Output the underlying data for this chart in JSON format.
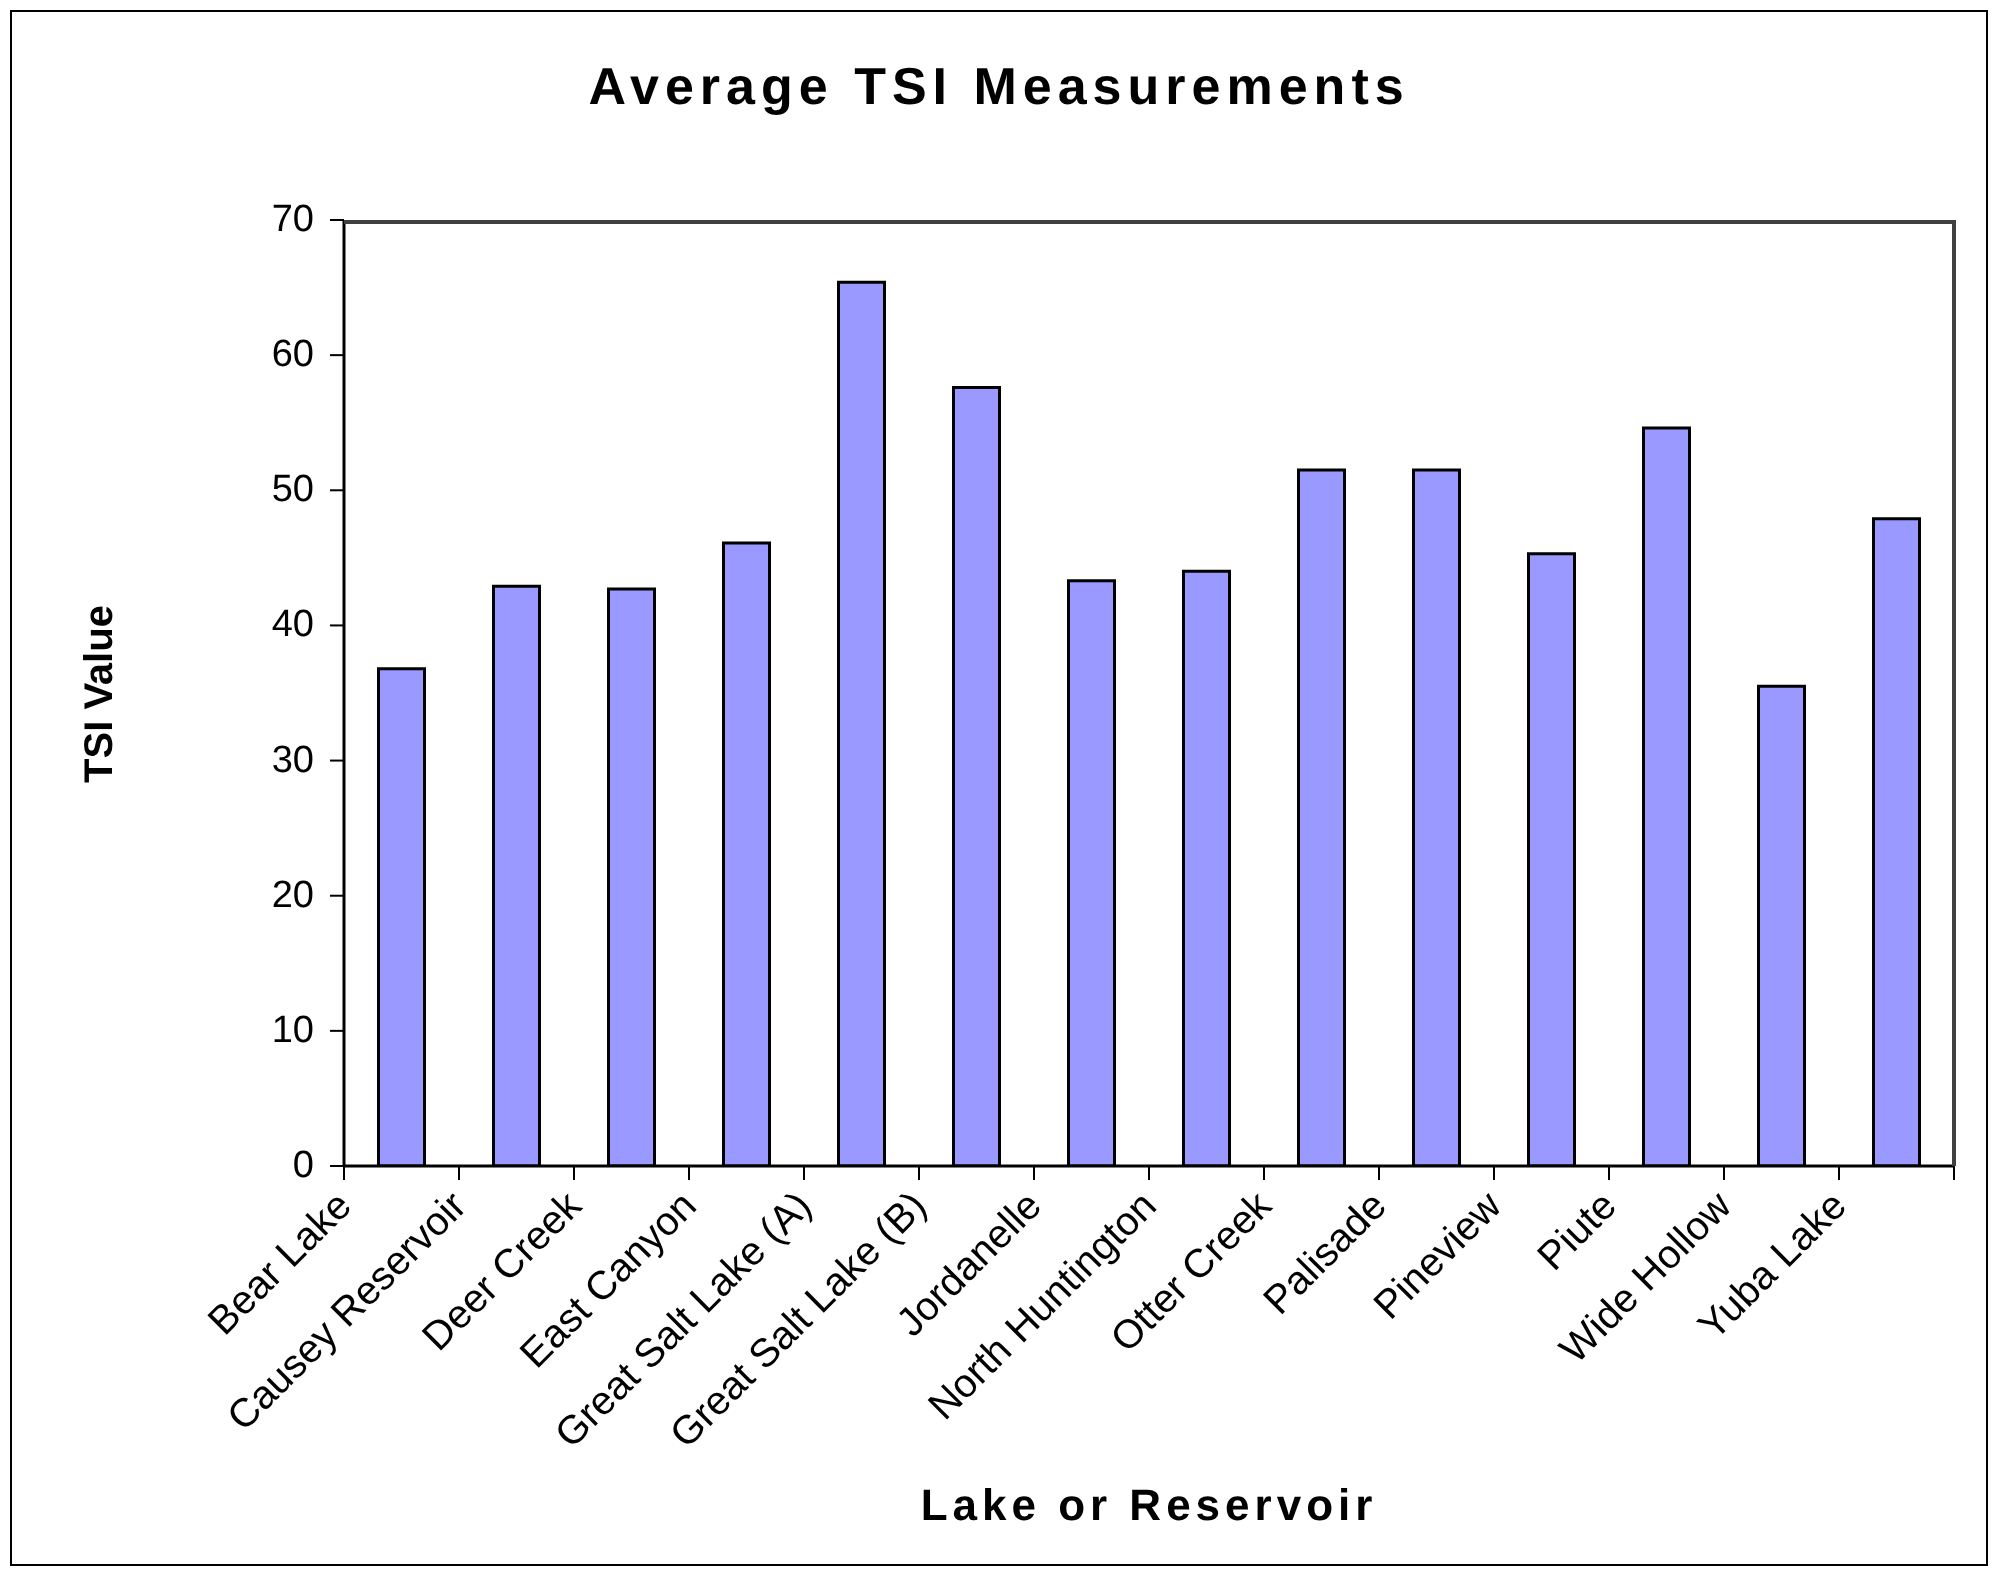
{
  "chart_data": {
    "type": "bar",
    "title": "Average TSI Measurements",
    "xlabel": "Lake or Reservoir",
    "ylabel": "TSI Value",
    "categories": [
      "Bear Lake",
      "Causey Reservoir",
      "Deer Creek",
      "East Canyon",
      "Great Salt Lake (A)",
      "Great Salt Lake (B)",
      "Jordanelle",
      "North Huntington",
      "Otter Creek",
      "Palisade",
      "Pineview",
      "Piute",
      "Wide Hollow",
      "Yuba Lake"
    ],
    "values": [
      36.8,
      42.9,
      42.7,
      46.1,
      65.4,
      57.6,
      43.3,
      44.0,
      51.5,
      51.5,
      45.3,
      54.6,
      35.5,
      47.9
    ],
    "color": "#9999ff",
    "ylim": [
      0,
      70
    ],
    "yticks": [
      0,
      10,
      20,
      30,
      40,
      50,
      60,
      70
    ]
  }
}
